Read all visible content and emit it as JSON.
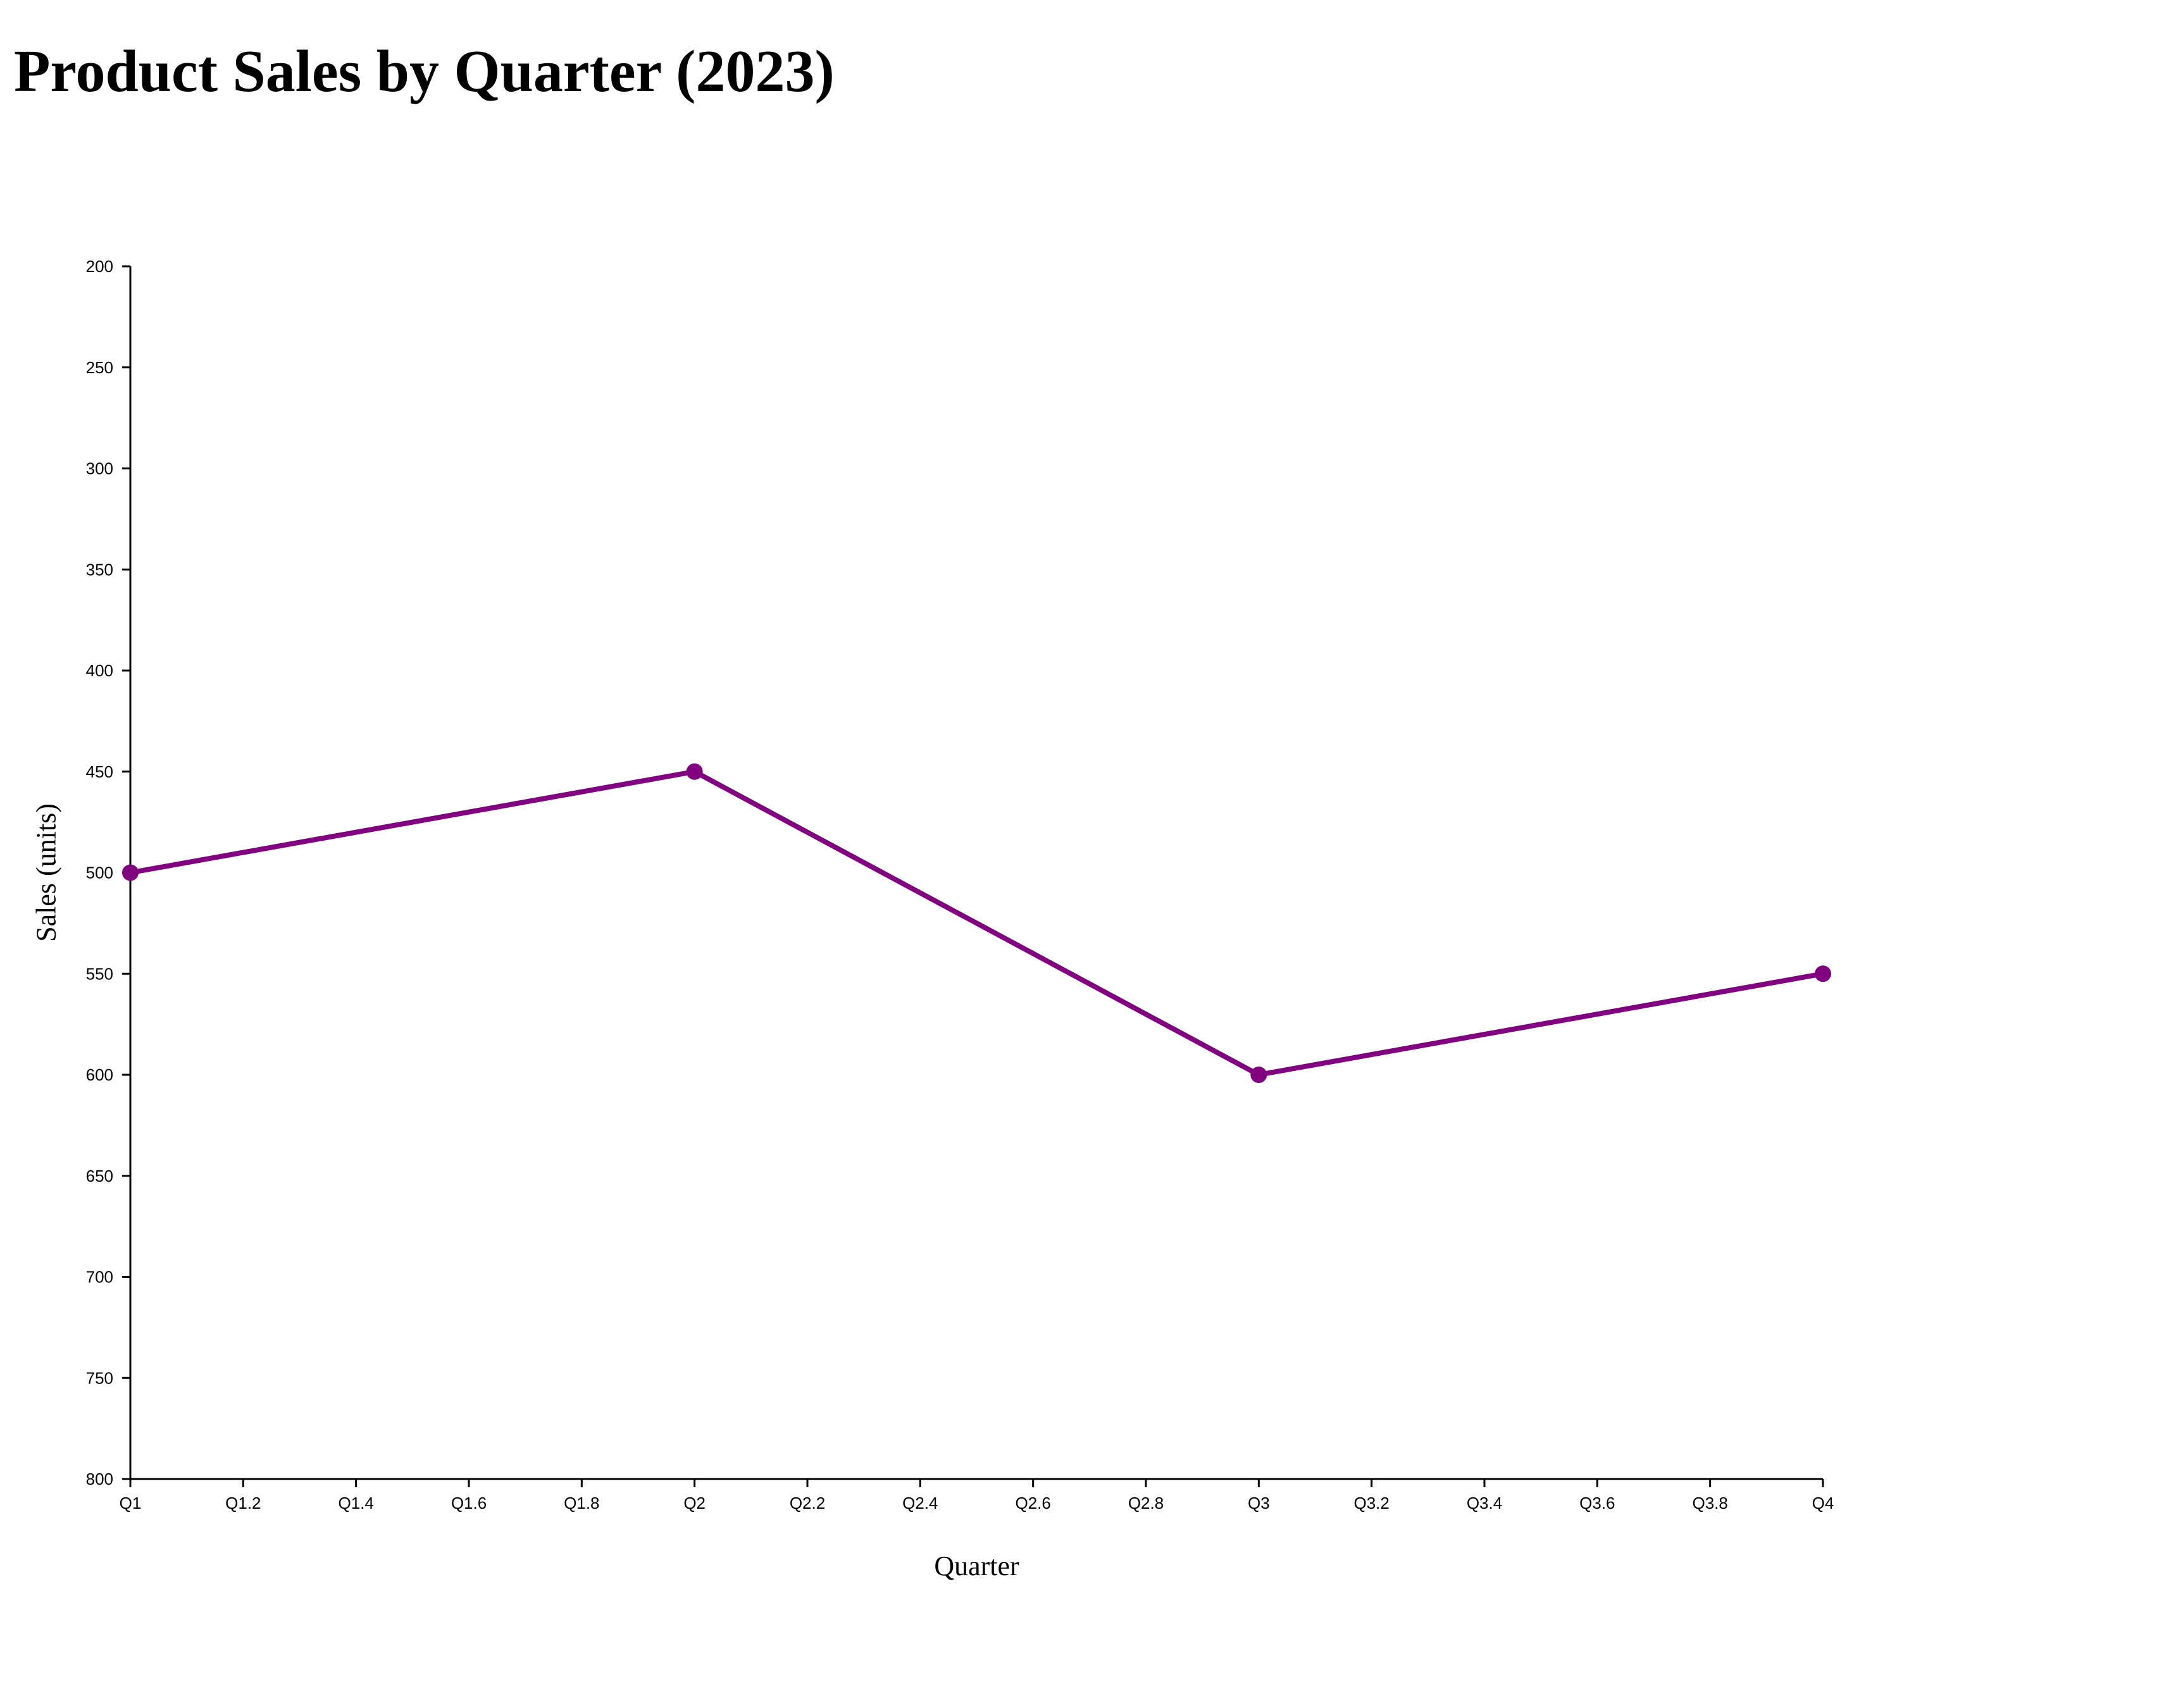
{
  "chart_data": {
    "type": "line",
    "title": "Product Sales by Quarter (2023)",
    "xlabel": "Quarter",
    "ylabel": "Sales (units)",
    "x_ticks": [
      "Q1",
      "Q1.2",
      "Q1.4",
      "Q1.6",
      "Q1.8",
      "Q2",
      "Q2.2",
      "Q2.4",
      "Q2.6",
      "Q2.8",
      "Q3",
      "Q3.2",
      "Q3.4",
      "Q3.6",
      "Q3.8",
      "Q4"
    ],
    "y_ticks": [
      200,
      250,
      300,
      350,
      400,
      450,
      500,
      550,
      600,
      650,
      700,
      750,
      800
    ],
    "xlim": [
      1,
      4
    ],
    "ylim": [
      200,
      800
    ],
    "y_axis_inverted": true,
    "grid": false,
    "legend": "none",
    "series": [
      {
        "color": "#800080",
        "points": [
          {
            "x": 1,
            "label": "Q1",
            "y": 500
          },
          {
            "x": 2,
            "label": "Q2",
            "y": 450
          },
          {
            "x": 3,
            "label": "Q3",
            "y": 600
          },
          {
            "x": 4,
            "label": "Q4",
            "y": 550
          }
        ]
      }
    ]
  }
}
